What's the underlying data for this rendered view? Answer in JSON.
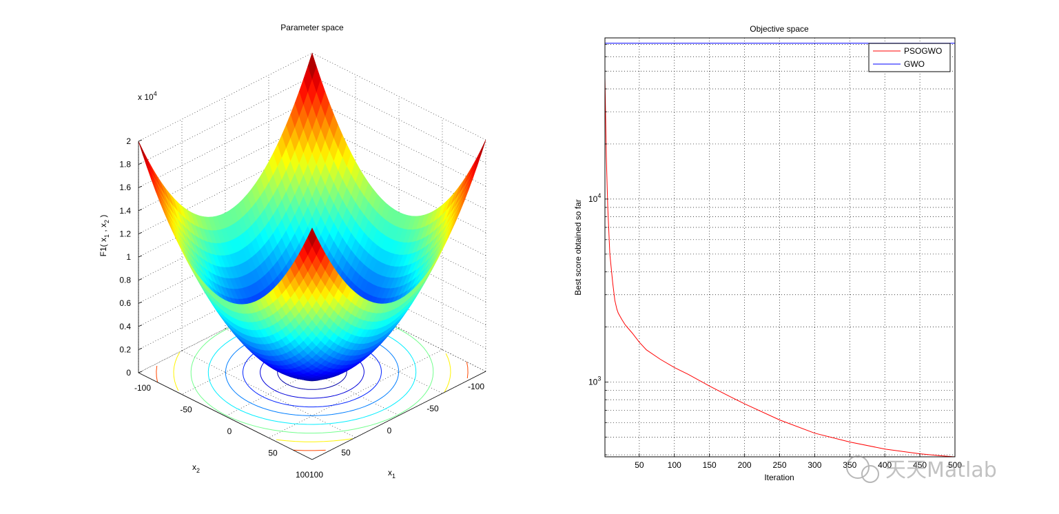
{
  "chart_data": [
    {
      "type": "surface",
      "title": "Parameter space",
      "function_label": "F1(x1, x2)",
      "z_label_parts": [
        "F1( x",
        "1",
        " , x",
        "2",
        " )"
      ],
      "x1_label_parts": [
        "x",
        "1"
      ],
      "x2_label_parts": [
        "x",
        "2"
      ],
      "z_exponent_parts": [
        "x 10",
        "4"
      ],
      "z_ticks": [
        "0",
        "0.2",
        "0.4",
        "0.6",
        "0.8",
        "1",
        "1.2",
        "1.4",
        "1.6",
        "1.8",
        "2"
      ],
      "x1_ticks": [
        "-100",
        "-50",
        "0",
        "50",
        "100"
      ],
      "x2_ticks": [
        "-100",
        "-50",
        "0",
        "50",
        "100"
      ],
      "x_range": [
        -100,
        100
      ],
      "z_range": [
        0,
        20000
      ],
      "colormap": "jet",
      "contours_on_floor": true,
      "grid": true
    },
    {
      "type": "line",
      "title": "Objective space",
      "xlabel": "Iteration",
      "ylabel": "Best score obtained so far",
      "yscale": "log",
      "xlim": [
        1,
        500
      ],
      "x_ticks": [
        "50",
        "100",
        "150",
        "200",
        "250",
        "300",
        "350",
        "400",
        "450",
        "500"
      ],
      "y_tick_labels": [
        {
          "base": "10",
          "exp": "3",
          "value": 1000
        },
        {
          "base": "10",
          "exp": "4",
          "value": 10000
        }
      ],
      "grid": true,
      "legend": "top-right",
      "series": [
        {
          "name": "PSOGWO",
          "color": "#ff0000",
          "x": [
            1,
            3,
            5,
            8,
            12,
            15,
            18,
            20,
            25,
            30,
            40,
            50,
            60,
            80,
            100,
            120,
            150,
            180,
            200,
            250,
            300,
            350,
            400,
            450,
            480,
            500
          ],
          "y": [
            46000,
            17000,
            9000,
            5000,
            3500,
            2800,
            2500,
            2380,
            2200,
            2050,
            1850,
            1650,
            1500,
            1330,
            1200,
            1100,
            950,
            830,
            760,
            620,
            525,
            470,
            430,
            405,
            395,
            390
          ]
        },
        {
          "name": "GWO",
          "color": "#0000ff",
          "x": [
            1,
            500
          ],
          "y": [
            71000,
            71000
          ]
        }
      ]
    }
  ],
  "watermark": "天天Matlab"
}
